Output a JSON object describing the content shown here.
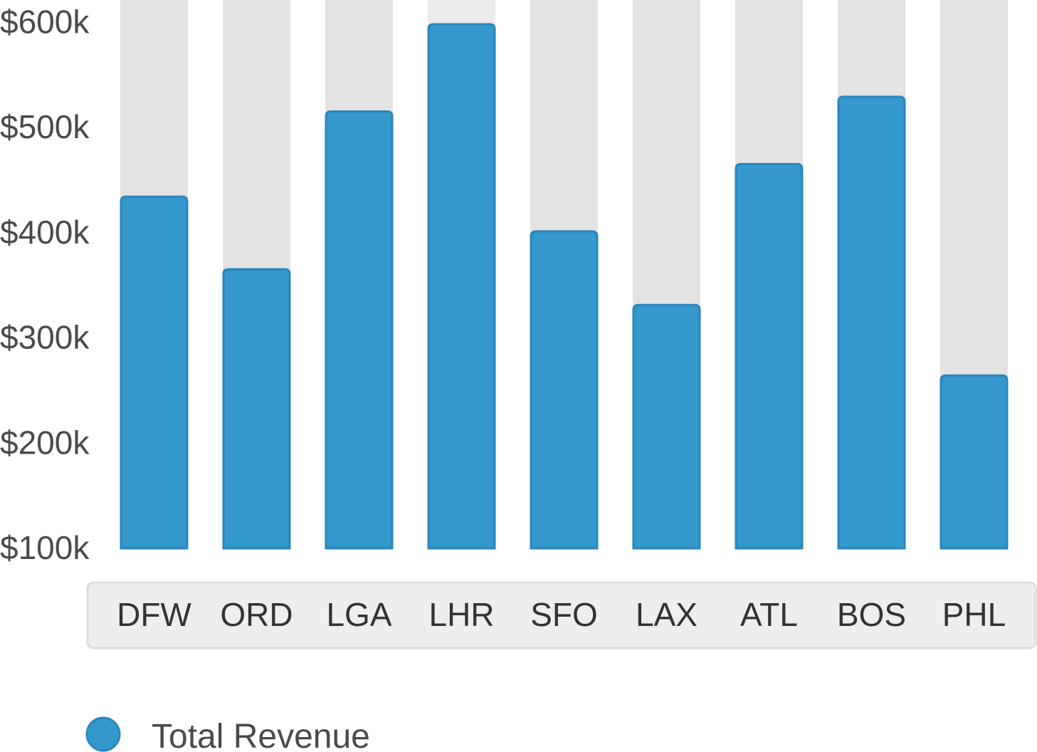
{
  "chart_data": {
    "type": "bar",
    "categories": [
      "DFW",
      "ORD",
      "LGA",
      "LHR",
      "SFO",
      "LAX",
      "ATL",
      "BOS",
      "PHL"
    ],
    "series": [
      {
        "name": "Total Revenue",
        "color": "#3498cc",
        "values": [
          433000,
          364000,
          514000,
          597000,
          400000,
          330000,
          464000,
          528000,
          263000
        ]
      }
    ],
    "y_ticks": [
      "$100k",
      "$200k",
      "$300k",
      "$400k",
      "$500k",
      "$600k"
    ],
    "y_tick_values": [
      100000,
      200000,
      300000,
      400000,
      500000,
      600000
    ],
    "ylim": [
      100000,
      620000
    ],
    "background_track_color": "#e3e3e3",
    "xaxis_box_color": "#eeeeee",
    "legend_position": "bottom-left",
    "grid": false
  },
  "legend": {
    "label": "Total Revenue"
  }
}
